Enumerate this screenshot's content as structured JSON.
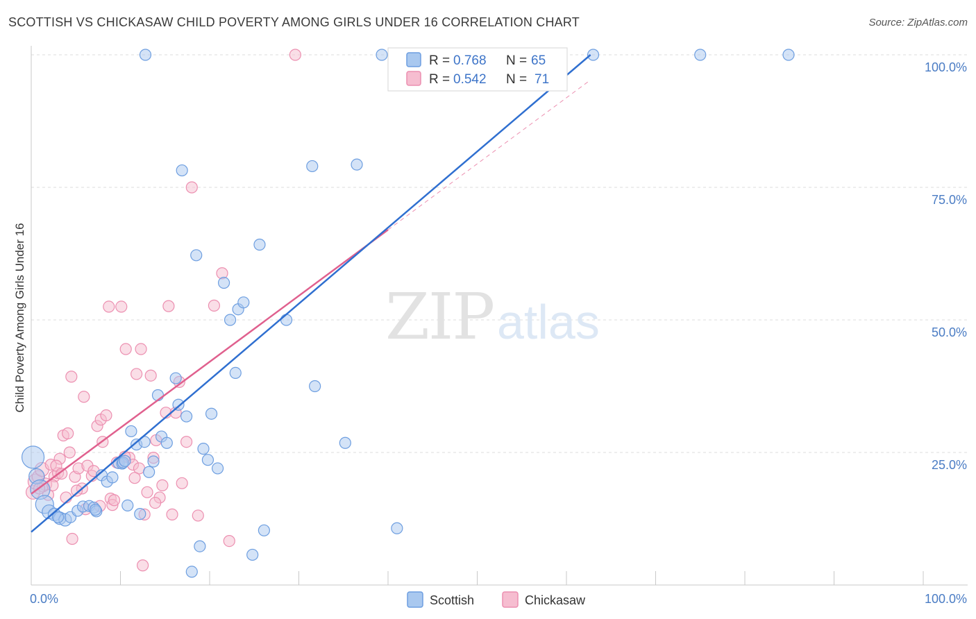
{
  "title": "SCOTTISH VS CHICKASAW CHILD POVERTY AMONG GIRLS UNDER 16 CORRELATION CHART",
  "source": "Source: ZipAtlas.com",
  "watermark": {
    "zip": "ZIP",
    "atlas": "atlas"
  },
  "colors": {
    "scottish_fill": "#a9c8ef",
    "scottish_stroke": "#6d9ee0",
    "scottish_line": "#2f6fd0",
    "chickasaw_fill": "#f6bdd0",
    "chickasaw_stroke": "#ec8fb0",
    "chickasaw_line": "#e0608e",
    "grid": "#dcdcdc",
    "tick_label": "#4a7cc4"
  },
  "legend_box": {
    "rows": [
      {
        "r_label": "R = ",
        "r_value": "0.768",
        "n_label": "N = ",
        "n_value": "65"
      },
      {
        "r_label": "R = ",
        "r_value": "0.542",
        "n_label": "N = ",
        "n_value": "71"
      }
    ]
  },
  "chart_data": {
    "type": "scatter",
    "title": "SCOTTISH VS CHICKASAW CHILD POVERTY AMONG GIRLS UNDER 16 CORRELATION CHART",
    "xlabel": "",
    "ylabel": "Child Poverty Among Girls Under 16",
    "xlim": [
      0,
      100
    ],
    "ylim": [
      0,
      100
    ],
    "x_tick_labels": [
      "0.0%",
      "100.0%"
    ],
    "y_ticks": [
      25,
      50,
      75,
      100
    ],
    "y_tick_labels": [
      "25.0%",
      "50.0%",
      "75.0%",
      "100.0%"
    ],
    "grid": true,
    "legend": "bottom-center",
    "series": [
      {
        "name": "Scottish",
        "r": 0.768,
        "n": 65,
        "trend": {
          "x0": 0,
          "y0": 10,
          "x1": 62.7,
          "y1": 100
        },
        "points": [
          [
            0.2,
            24.1,
            16
          ],
          [
            0.6,
            20.5,
            11
          ],
          [
            1.0,
            18.0,
            14
          ],
          [
            1.5,
            15.2,
            13
          ],
          [
            2.0,
            13.8,
            10
          ],
          [
            2.6,
            13.3,
            9
          ],
          [
            3.2,
            12.6,
            9
          ],
          [
            3.8,
            12.3,
            9
          ],
          [
            4.4,
            12.8,
            8
          ],
          [
            5.2,
            14.0,
            8
          ],
          [
            5.8,
            14.8,
            8
          ],
          [
            6.5,
            14.9,
            8
          ],
          [
            7.0,
            14.6,
            8
          ],
          [
            7.3,
            13.9,
            8
          ],
          [
            7.9,
            20.7,
            8
          ],
          [
            8.5,
            19.5,
            8
          ],
          [
            9.1,
            20.3,
            8
          ],
          [
            9.8,
            23.0,
            8
          ],
          [
            10.2,
            22.9,
            8
          ],
          [
            10.3,
            23.1,
            8
          ],
          [
            10.5,
            23.4,
            8
          ],
          [
            10.8,
            15.0,
            8
          ],
          [
            11.2,
            29.0,
            8
          ],
          [
            11.8,
            26.5,
            8
          ],
          [
            12.2,
            13.4,
            8
          ],
          [
            12.7,
            27.0,
            8
          ],
          [
            13.2,
            21.3,
            8
          ],
          [
            13.7,
            23.3,
            8
          ],
          [
            14.2,
            35.8,
            8
          ],
          [
            14.6,
            28.0,
            8
          ],
          [
            15.2,
            26.8,
            8
          ],
          [
            16.2,
            39.0,
            8
          ],
          [
            16.5,
            34.0,
            8
          ],
          [
            16.9,
            78.2,
            8
          ],
          [
            17.4,
            31.8,
            8
          ],
          [
            18.0,
            2.5,
            8
          ],
          [
            18.5,
            62.2,
            8
          ],
          [
            18.9,
            7.3,
            8
          ],
          [
            19.3,
            25.7,
            8
          ],
          [
            19.8,
            23.6,
            8
          ],
          [
            20.2,
            32.3,
            8
          ],
          [
            20.9,
            22.0,
            8
          ],
          [
            21.6,
            57.0,
            8
          ],
          [
            22.3,
            50.0,
            8
          ],
          [
            22.9,
            40.0,
            8
          ],
          [
            23.2,
            52.0,
            8
          ],
          [
            23.8,
            53.3,
            8
          ],
          [
            24.8,
            5.7,
            8
          ],
          [
            25.6,
            64.2,
            8
          ],
          [
            26.1,
            10.3,
            8
          ],
          [
            28.6,
            50.0,
            8
          ],
          [
            31.5,
            79.0,
            8
          ],
          [
            31.8,
            37.5,
            8
          ],
          [
            36.5,
            79.3,
            8
          ],
          [
            39.3,
            100,
            8
          ],
          [
            41.0,
            10.7,
            8
          ],
          [
            46.8,
            100,
            8
          ],
          [
            63.0,
            100,
            8
          ],
          [
            58.0,
            100,
            8
          ],
          [
            75.0,
            100,
            8
          ],
          [
            84.9,
            100,
            8
          ],
          [
            35.2,
            26.8,
            8
          ],
          [
            7.2,
            14.2,
            8
          ],
          [
            3.0,
            12.8,
            8
          ],
          [
            12.8,
            100,
            8
          ]
        ]
      },
      {
        "name": "Chickasaw",
        "r": 0.542,
        "n": 71,
        "trend": {
          "x0": 0,
          "y0": 17.2,
          "x1": 40.0,
          "y1": 67.0
        },
        "points": [
          [
            0.2,
            17.5,
            10
          ],
          [
            0.5,
            19.5,
            11
          ],
          [
            0.8,
            20.4,
            9
          ],
          [
            1.2,
            21.8,
            10
          ],
          [
            1.6,
            19.0,
            9
          ],
          [
            1.9,
            17.0,
            8
          ],
          [
            2.2,
            22.7,
            8
          ],
          [
            2.6,
            20.5,
            8
          ],
          [
            3.0,
            21.1,
            8
          ],
          [
            3.2,
            23.8,
            8
          ],
          [
            3.6,
            28.2,
            8
          ],
          [
            3.9,
            16.5,
            8
          ],
          [
            4.1,
            28.6,
            8
          ],
          [
            4.3,
            25.0,
            8
          ],
          [
            4.5,
            39.3,
            8
          ],
          [
            4.9,
            20.4,
            8
          ],
          [
            5.3,
            22.0,
            8
          ],
          [
            5.7,
            18.2,
            8
          ],
          [
            5.9,
            35.5,
            8
          ],
          [
            6.3,
            22.5,
            8
          ],
          [
            6.8,
            20.6,
            8
          ],
          [
            7.4,
            30.0,
            8
          ],
          [
            7.8,
            31.2,
            8
          ],
          [
            8.0,
            27.0,
            8
          ],
          [
            8.4,
            32.0,
            8
          ],
          [
            8.9,
            16.3,
            8
          ],
          [
            9.1,
            15.1,
            8
          ],
          [
            9.6,
            23.1,
            8
          ],
          [
            10.1,
            52.5,
            8
          ],
          [
            10.6,
            44.5,
            8
          ],
          [
            11.0,
            24.0,
            8
          ],
          [
            11.4,
            22.7,
            8
          ],
          [
            11.8,
            39.8,
            8
          ],
          [
            12.1,
            22.0,
            8
          ],
          [
            12.3,
            44.5,
            8
          ],
          [
            12.7,
            13.3,
            8
          ],
          [
            13.0,
            17.5,
            8
          ],
          [
            13.4,
            39.5,
            8
          ],
          [
            13.7,
            24.0,
            8
          ],
          [
            14.0,
            27.3,
            8
          ],
          [
            14.4,
            16.5,
            8
          ],
          [
            14.7,
            18.8,
            8
          ],
          [
            15.1,
            32.5,
            8
          ],
          [
            15.4,
            52.6,
            8
          ],
          [
            15.8,
            13.3,
            8
          ],
          [
            16.2,
            32.5,
            8
          ],
          [
            16.6,
            38.3,
            8
          ],
          [
            16.9,
            19.2,
            8
          ],
          [
            17.4,
            27.0,
            8
          ],
          [
            18.0,
            75.0,
            8
          ],
          [
            18.7,
            13.1,
            8
          ],
          [
            20.5,
            52.7,
            8
          ],
          [
            21.4,
            58.8,
            8
          ],
          [
            22.2,
            8.3,
            8
          ],
          [
            29.6,
            100,
            8
          ],
          [
            12.5,
            3.7,
            8
          ],
          [
            4.6,
            8.7,
            8
          ],
          [
            8.7,
            52.5,
            8
          ],
          [
            7.7,
            14.9,
            8
          ],
          [
            10.5,
            24.2,
            8
          ],
          [
            1.3,
            18.6,
            8
          ],
          [
            2.8,
            22.5,
            8
          ],
          [
            6.1,
            14.3,
            8
          ],
          [
            9.3,
            16.0,
            8
          ],
          [
            11.6,
            20.2,
            8
          ],
          [
            3.4,
            21.0,
            8
          ],
          [
            5.1,
            17.8,
            8
          ],
          [
            2.4,
            18.8,
            8
          ],
          [
            7.0,
            21.5,
            8
          ],
          [
            0.9,
            18.2,
            8
          ],
          [
            13.9,
            15.5,
            8
          ]
        ]
      }
    ]
  }
}
